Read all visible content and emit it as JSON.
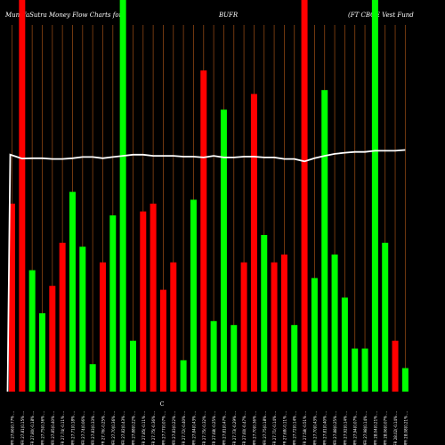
{
  "header": {
    "left_title": "MunafaSutra  Money Flow  Charts for",
    "symbol": "BUFR",
    "fund_name": "(FT CBOE Vest Fund"
  },
  "colors": {
    "background": "#000000",
    "grid_line": "#8B4513",
    "up_bar": "#00FF00",
    "down_bar": "#FF0000",
    "trend_line": "#FFFFFF"
  },
  "chart_data": {
    "type": "bar",
    "title": "MunafaSutra  Money Flow  Charts for BUFR (FT CBOE Vest Fund",
    "xlabel": "",
    "ylabel": "",
    "axis_mark": "C",
    "ylim": [
      0,
      100
    ],
    "grid": true,
    "categories": [
      "BUFR 27.66(0.77% ...",
      "BUFR 27.81(0.15% ...",
      "BUFR 27.80(-0.18% ...",
      "BUFR 27.75(0.36% ...",
      "BUFR 27.85(0.40% ...",
      "BUFR 27.74(-0.11% ...",
      "BUFR 27.71(0.18% ...",
      "BUFR 27.74(0.06% ...",
      "BUFR 27.83(0.33% ...",
      "BUFR 27.76(-0.25% ...",
      "BUFR 27.70(0.36% ...",
      "BUFR 27.82(0.43% ...",
      "BUFR 27.88(0.22% ...",
      "BUFR 27.85(-0.11% ...",
      "BUFR 27.75(-0.36% ...",
      "BUFR 27.77(0.07% ...",
      "BUFR 27.83(0.22% ...",
      "BUFR 27.72(-0.40% ...",
      "BUFR 27.84(0.43% ...",
      "BUFR 27.75(-0.32% ...",
      "BUFR 27.68(-0.25% ...",
      "BUFR 27.81(0.47% ...",
      "BUFR 27.73(-0.29% ...",
      "BUFR 27.60(-0.47% ...",
      "BUFR 27.70(0.36% ...",
      "BUFR 27.75(0.18% ...",
      "BUFR 27.71(-0.14% ...",
      "BUFR 27.68(-0.11% ...",
      "BUFR 27.72(0.14% ...",
      "BUFR 27.58(-0.51% ...",
      "BUFR 27.70(0.43% ...",
      "BUFR 27.81(0.40% ...",
      "BUFR 27.88(0.25% ...",
      "BUFR 27.92(0.14% ...",
      "BUFR 27.94(0.07% ...",
      "BUFR 27.98(0.14% ...",
      "BUFR 28.04(0.21% ...",
      "BUFR 28.06(0.07% ...",
      "BUFR 28.02(-0.14% ...",
      "BUFR 28.08(0.21% ..."
    ],
    "series": [
      {
        "values": [
          48,
          100,
          31,
          20,
          27,
          38,
          51,
          37,
          7,
          33,
          45,
          100,
          13,
          46,
          48,
          26,
          33,
          8,
          49,
          82,
          18,
          72,
          17,
          33,
          76,
          40,
          33,
          35,
          17,
          100,
          29,
          77,
          35,
          24,
          11,
          11,
          100,
          38,
          13,
          6
        ],
        "directions": [
          "down",
          "down",
          "up",
          "up",
          "down",
          "down",
          "up",
          "up",
          "up",
          "down",
          "up",
          "up",
          "up",
          "down",
          "down",
          "down",
          "down",
          "up",
          "up",
          "down",
          "up",
          "up",
          "up",
          "down",
          "down",
          "up",
          "down",
          "down",
          "up",
          "down",
          "up",
          "up",
          "up",
          "up",
          "up",
          "up",
          "up",
          "up",
          "down",
          "up"
        ]
      },
      {
        "values": [
          60.5,
          59.5,
          59.6,
          59.6,
          59.4,
          59.4,
          59.6,
          59.9,
          59.9,
          59.6,
          59.9,
          60.2,
          60.5,
          60.5,
          60.2,
          60.2,
          60.2,
          60.0,
          60.0,
          59.8,
          60.2,
          59.8,
          59.8,
          60.0,
          60.0,
          59.8,
          59.8,
          59.4,
          59.4,
          58.8,
          59.6,
          60.2,
          60.7,
          61.0,
          61.2,
          61.2,
          61.5,
          61.5,
          61.5,
          61.7
        ]
      }
    ]
  }
}
